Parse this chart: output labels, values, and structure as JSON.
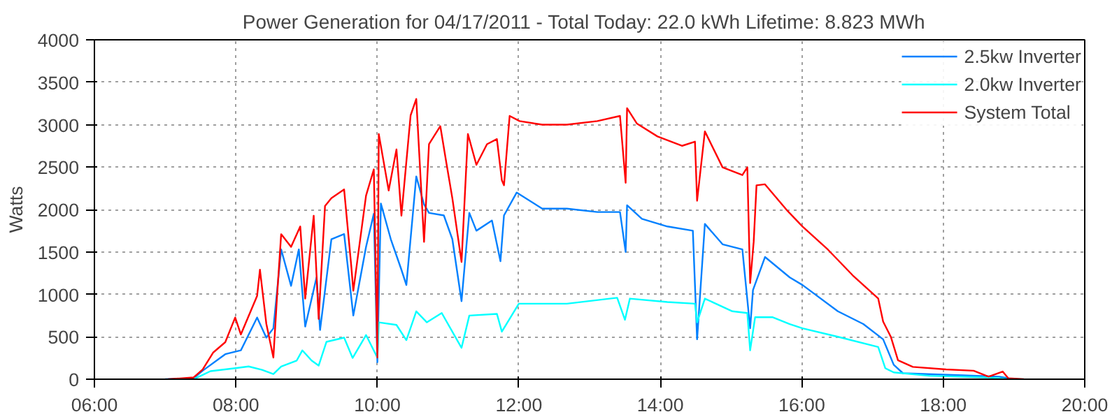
{
  "chart_data": {
    "type": "line",
    "title": "Power Generation for 04/17/2011 - Total Today: 22.0 kWh   Lifetime: 8.823 MWh",
    "ylabel": "Watts",
    "xlim": [
      6,
      20
    ],
    "ylim": [
      0,
      4000
    ],
    "xticks": [
      {
        "value": 6,
        "label": "06:00"
      },
      {
        "value": 8,
        "label": "08:00"
      },
      {
        "value": 10,
        "label": "10:00"
      },
      {
        "value": 12,
        "label": "12:00"
      },
      {
        "value": 14,
        "label": "14:00"
      },
      {
        "value": 16,
        "label": "16:00"
      },
      {
        "value": 18,
        "label": "18:00"
      },
      {
        "value": 20,
        "label": "20:00"
      }
    ],
    "yticks": [
      0,
      500,
      1000,
      1500,
      2000,
      2500,
      3000,
      3500,
      4000
    ],
    "grid": true,
    "legend": "top right",
    "marker": "none",
    "line_style": "solid",
    "series": [
      {
        "name": "2.5kw Inverter",
        "color": "#0080ff",
        "x": [
          7.0,
          7.4,
          7.53,
          7.85,
          8.07,
          8.3,
          8.43,
          8.53,
          8.64,
          8.78,
          8.89,
          8.98,
          9.14,
          9.19,
          9.35,
          9.53,
          9.66,
          9.84,
          9.95,
          10.0,
          10.05,
          10.19,
          10.34,
          10.41,
          10.55,
          10.66,
          10.73,
          10.94,
          11.06,
          11.19,
          11.3,
          11.4,
          11.62,
          11.74,
          11.79,
          11.97,
          12.33,
          12.68,
          13.11,
          13.43,
          13.51,
          13.53,
          13.74,
          14.1,
          14.46,
          14.52,
          14.63,
          14.88,
          15.16,
          15.27,
          15.31,
          15.48,
          15.83,
          16.01,
          16.51,
          16.87,
          17.15,
          17.3,
          17.43,
          18.28,
          18.79,
          19.0
        ],
        "values": [
          0,
          10,
          100,
          295,
          340,
          727,
          490,
          600,
          1530,
          1100,
          1530,
          620,
          1200,
          580,
          1650,
          1710,
          750,
          1560,
          1950,
          200,
          2070,
          1650,
          1290,
          1110,
          2390,
          2060,
          1960,
          1930,
          1650,
          920,
          1960,
          1750,
          1870,
          1390,
          1930,
          2200,
          2010,
          2010,
          1970,
          1970,
          1500,
          2050,
          1890,
          1800,
          1750,
          470,
          1830,
          1590,
          1530,
          600,
          1050,
          1440,
          1200,
          1110,
          800,
          650,
          470,
          170,
          70,
          45,
          30,
          0
        ]
      },
      {
        "name": "2.0kw Inverter",
        "color": "#00ffff",
        "x": [
          7.4,
          7.53,
          7.64,
          7.99,
          8.18,
          8.37,
          8.53,
          8.64,
          8.86,
          8.94,
          9.07,
          9.17,
          9.28,
          9.53,
          9.65,
          9.84,
          10.0,
          10.02,
          10.27,
          10.41,
          10.55,
          10.7,
          10.91,
          11.19,
          11.3,
          11.69,
          11.76,
          12.0,
          12.68,
          13.39,
          13.5,
          13.57,
          14.1,
          14.49,
          14.52,
          14.63,
          15.02,
          15.23,
          15.27,
          15.34,
          15.59,
          15.83,
          16.01,
          16.51,
          17.08,
          17.18,
          17.3,
          17.8,
          18.64,
          18.9
        ],
        "values": [
          0,
          50,
          95,
          130,
          150,
          110,
          60,
          150,
          220,
          340,
          220,
          160,
          440,
          490,
          250,
          520,
          255,
          670,
          640,
          460,
          800,
          670,
          780,
          370,
          750,
          770,
          560,
          890,
          890,
          960,
          700,
          950,
          910,
          890,
          670,
          950,
          800,
          780,
          340,
          730,
          730,
          650,
          600,
          500,
          380,
          130,
          80,
          40,
          20,
          0
        ]
      },
      {
        "name": "System Total",
        "color": "#ff0000",
        "x": [
          7.04,
          7.4,
          7.53,
          7.68,
          7.85,
          7.99,
          8.07,
          8.3,
          8.34,
          8.43,
          8.53,
          8.58,
          8.64,
          8.78,
          8.91,
          8.98,
          9.1,
          9.17,
          9.26,
          9.35,
          9.53,
          9.63,
          9.66,
          9.84,
          9.95,
          10.0,
          10.02,
          10.16,
          10.27,
          10.34,
          10.47,
          10.55,
          10.66,
          10.73,
          10.89,
          10.98,
          11.06,
          11.19,
          11.28,
          11.4,
          11.55,
          11.69,
          11.76,
          11.79,
          11.87,
          12.01,
          12.33,
          12.68,
          13.11,
          13.43,
          13.51,
          13.53,
          13.67,
          13.96,
          14.31,
          14.49,
          14.52,
          14.63,
          14.88,
          15.16,
          15.23,
          15.27,
          15.32,
          15.36,
          15.48,
          15.8,
          16.01,
          16.37,
          16.72,
          17.08,
          17.15,
          17.26,
          17.36,
          17.57,
          18.04,
          18.43,
          18.64,
          18.84,
          18.92,
          19.14
        ],
        "values": [
          0,
          20,
          115,
          315,
          436,
          727,
          527,
          982,
          1290,
          655,
          255,
          952,
          1709,
          1560,
          1800,
          950,
          1927,
          710,
          2042,
          2133,
          2236,
          1345,
          1042,
          2164,
          2473,
          255,
          2890,
          2224,
          2709,
          1927,
          3109,
          3303,
          1618,
          2770,
          2982,
          2527,
          2133,
          1382,
          2890,
          2527,
          2770,
          2830,
          2345,
          2285,
          3103,
          3042,
          3000,
          3000,
          3042,
          3103,
          2315,
          3194,
          3012,
          2861,
          2751,
          2800,
          2103,
          2921,
          2497,
          2406,
          2497,
          1133,
          1618,
          2285,
          2297,
          1982,
          1800,
          1527,
          1224,
          952,
          679,
          497,
          224,
          145,
          115,
          100,
          30,
          90,
          10,
          0
        ]
      }
    ]
  }
}
